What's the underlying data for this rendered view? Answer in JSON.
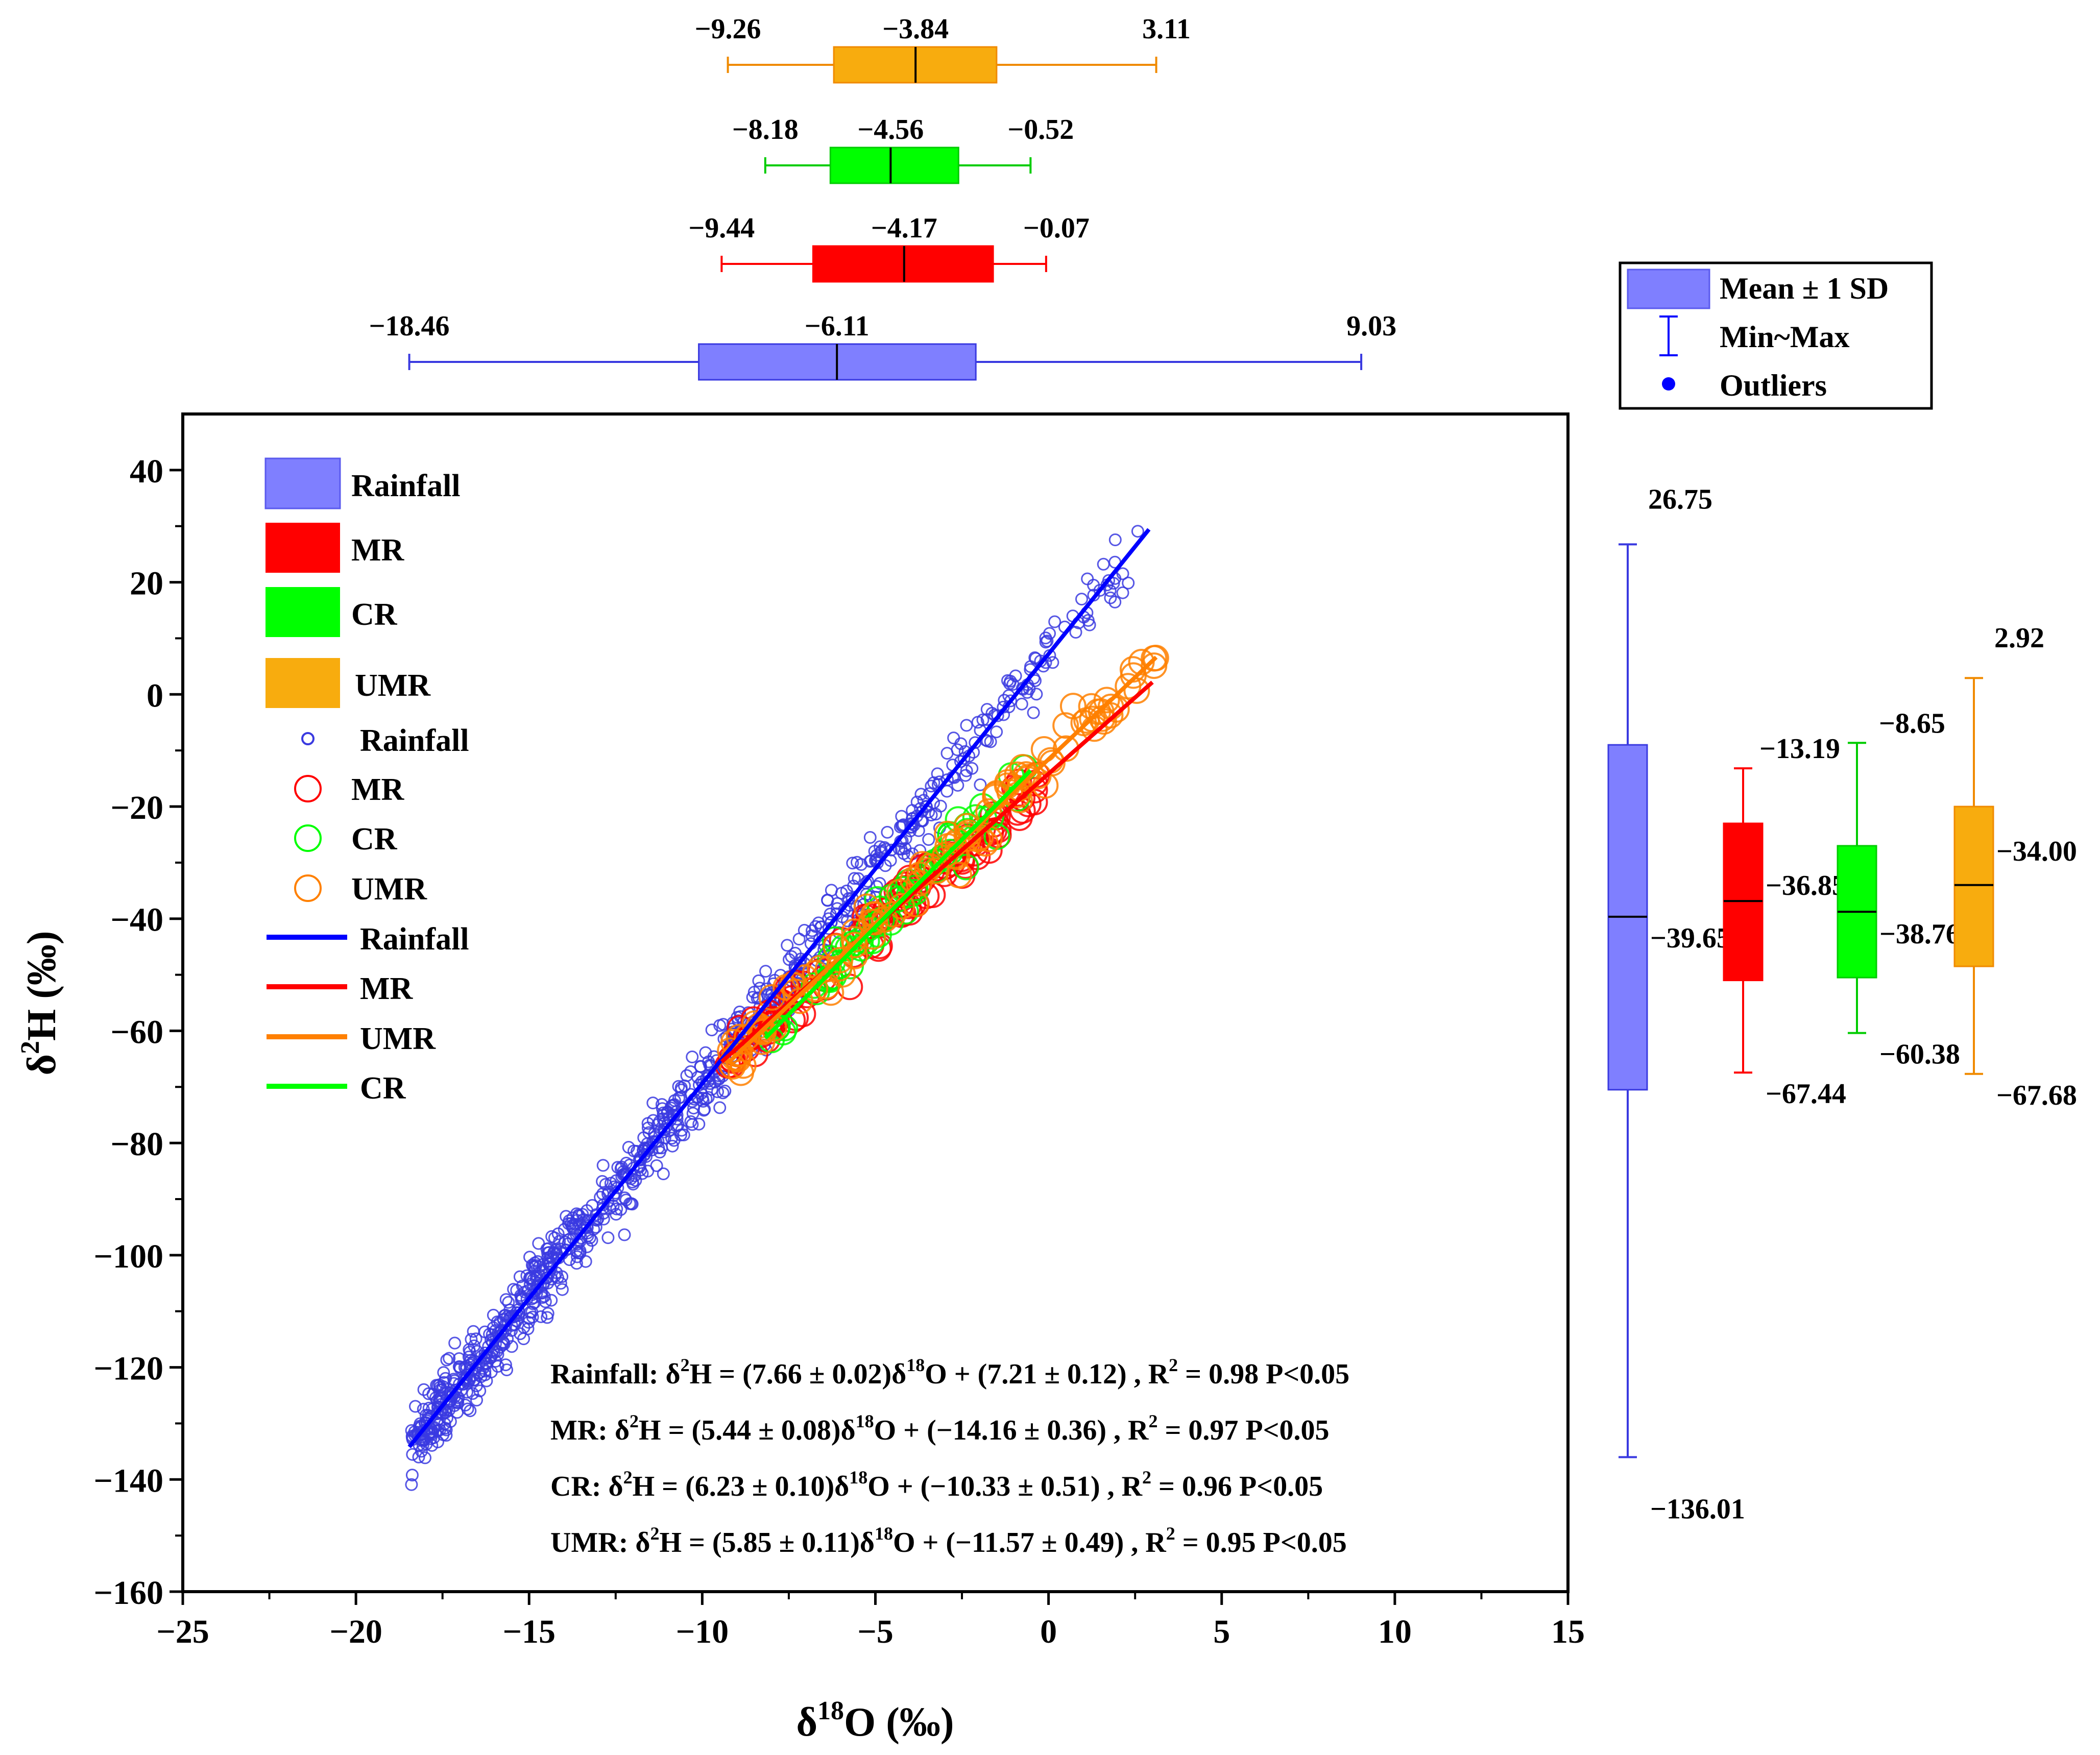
{
  "chart_data": {
    "type": "scatter",
    "xlabel": "δ18O (‰)",
    "ylabel": "δ2H (‰)",
    "xlim": [
      -25,
      15
    ],
    "ylim": [
      -160,
      50
    ],
    "x_ticks": [
      -25,
      -20,
      -15,
      -10,
      -5,
      0,
      5,
      10,
      15
    ],
    "y_ticks": [
      -160,
      -140,
      -120,
      -100,
      -80,
      -60,
      -40,
      -20,
      0,
      20,
      40
    ],
    "legend_placement": "top-left",
    "legend": {
      "boxes": [
        "Rainfall",
        "MR",
        "CR",
        "UMR"
      ],
      "scatter": [
        "Rainfall",
        "MR",
        "CR",
        "UMR"
      ],
      "lines": [
        "Rainfall",
        "MR",
        "UMR",
        "CR"
      ]
    },
    "colors": {
      "Rainfall": "#7f7fff",
      "MR": "#ff0000",
      "CR": "#00ff00",
      "UMR": "#f8ac0e"
    },
    "line_colors": {
      "Rainfall": "#0000ff",
      "MR": "#ff0000",
      "CR": "#00ff00",
      "UMR": "#ff8000"
    },
    "regressions": [
      {
        "name": "Rainfall",
        "slope": 7.66,
        "intercept": 7.21,
        "x_range": [
          -18.46,
          2.9
        ]
      },
      {
        "name": "MR",
        "slope": 5.44,
        "intercept": -14.16,
        "x_range": [
          -9.44,
          3.0
        ]
      },
      {
        "name": "UMR",
        "slope": 5.85,
        "intercept": -11.57,
        "x_range": [
          -9.26,
          3.11
        ]
      },
      {
        "name": "CR",
        "slope": 6.23,
        "intercept": -10.33,
        "x_range": [
          -8.18,
          -0.52
        ]
      }
    ],
    "equations": [
      {
        "name": "Rainfall",
        "prefix": "Rainfall: δ",
        "mid": "H = (7.66 ± 0.02)δ",
        "suffix": "O + (7.21 ± 0.12) , R",
        "tail": " = 0.98 P<0.05"
      },
      {
        "name": "MR",
        "prefix": "MR: δ",
        "mid": "H = (5.44 ± 0.08)δ",
        "suffix": "O + (−14.16 ± 0.36) , R",
        "tail": " = 0.97 P<0.05"
      },
      {
        "name": "CR",
        "prefix": "CR: δ",
        "mid": "H = (6.23 ± 0.10)δ",
        "suffix": "O + (−10.33 ± 0.51) , R",
        "tail": " = 0.96 P<0.05"
      },
      {
        "name": "UMR",
        "prefix": "UMR: δ",
        "mid": "H = (5.85 ± 0.11)δ",
        "suffix": "O + (−11.57 ± 0.49) , R",
        "tail": " = 0.95 P<0.05"
      }
    ],
    "box_legend": [
      "Mean ± 1 SD",
      "Min~Max",
      "Outliers"
    ],
    "top_boxes": [
      {
        "name": "UMR",
        "min": -9.26,
        "q1": -6.2,
        "median": -3.84,
        "q3": -1.5,
        "max": 3.11,
        "labels": {
          "min": "−9.26",
          "median": "−3.84",
          "max": "3.11"
        }
      },
      {
        "name": "CR",
        "min": -8.18,
        "q1": -6.3,
        "median": -4.56,
        "q3": -2.6,
        "max": -0.52,
        "labels": {
          "min": "−8.18",
          "median": "−4.56",
          "max": "−0.52"
        }
      },
      {
        "name": "MR",
        "min": -9.44,
        "q1": -6.8,
        "median": -4.17,
        "q3": -1.6,
        "max": -0.07,
        "labels": {
          "min": "−9.44",
          "median": "−4.17",
          "max": "−0.07"
        }
      },
      {
        "name": "Rainfall",
        "min": -18.46,
        "q1": -10.1,
        "median": -6.11,
        "q3": -2.1,
        "max": 9.03,
        "labels": {
          "min": "−18.46",
          "median": "−6.11",
          "max": "9.03"
        }
      }
    ],
    "right_boxes": [
      {
        "name": "Rainfall",
        "min": -136.01,
        "q1": -70.5,
        "median": -39.65,
        "q3": -9.0,
        "max": 26.75,
        "labels": {
          "min": "−136.01",
          "median": "−39.65",
          "max": "26.75"
        }
      },
      {
        "name": "MR",
        "min": -67.44,
        "q1": -51.0,
        "median": -36.85,
        "q3": -23.0,
        "max": -13.19,
        "labels": {
          "min": "−67.44",
          "median": "−36.85",
          "max": "−13.19"
        }
      },
      {
        "name": "CR",
        "min": -60.38,
        "q1": -50.5,
        "median": -38.76,
        "q3": -27.0,
        "max": -8.65,
        "labels": {
          "min": "−60.38",
          "median": "−38.76",
          "max": "−8.65"
        }
      },
      {
        "name": "UMR",
        "min": -67.68,
        "q1": -48.5,
        "median": -34.0,
        "q3": -20.0,
        "max": 2.92,
        "labels": {
          "min": "−67.68",
          "median": "−34.00",
          "max": "2.92"
        }
      }
    ]
  }
}
